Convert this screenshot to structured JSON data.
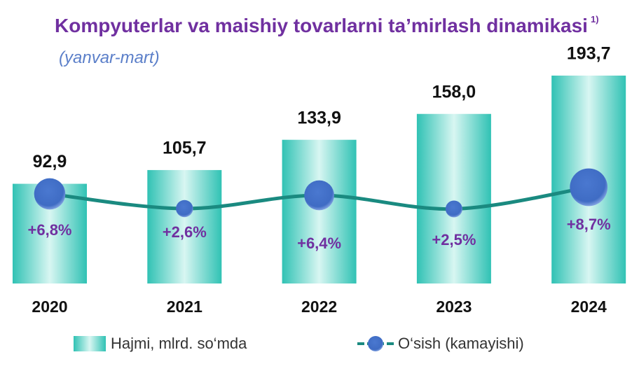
{
  "chart_data": {
    "type": "bar",
    "title": "Kompyuterlar va maishiy tovarlarni ta’mirlash dinamikasi",
    "footnote_mark": "1)",
    "subtitle": "(yanvar-mart)",
    "categories": [
      "2020",
      "2021",
      "2022",
      "2023",
      "2024"
    ],
    "series": [
      {
        "name": "Hajmi, mlrd. so‘mda",
        "type": "bar",
        "color": "#2bbfb0",
        "values": [
          92.9,
          105.7,
          133.9,
          158.0,
          193.7
        ],
        "value_labels": [
          "92,9",
          "105,7",
          "133,9",
          "158,0",
          "193,7"
        ]
      },
      {
        "name": "O‘sish (kamayishi)",
        "type": "line",
        "color": "#1a8a80",
        "marker_color": "#4472c4",
        "values": [
          6.8,
          2.6,
          6.4,
          2.5,
          8.7
        ],
        "value_labels": [
          "+6,8%",
          "+2,6%",
          "+6,4%",
          "+2,5%",
          "+8,7%"
        ]
      }
    ]
  }
}
